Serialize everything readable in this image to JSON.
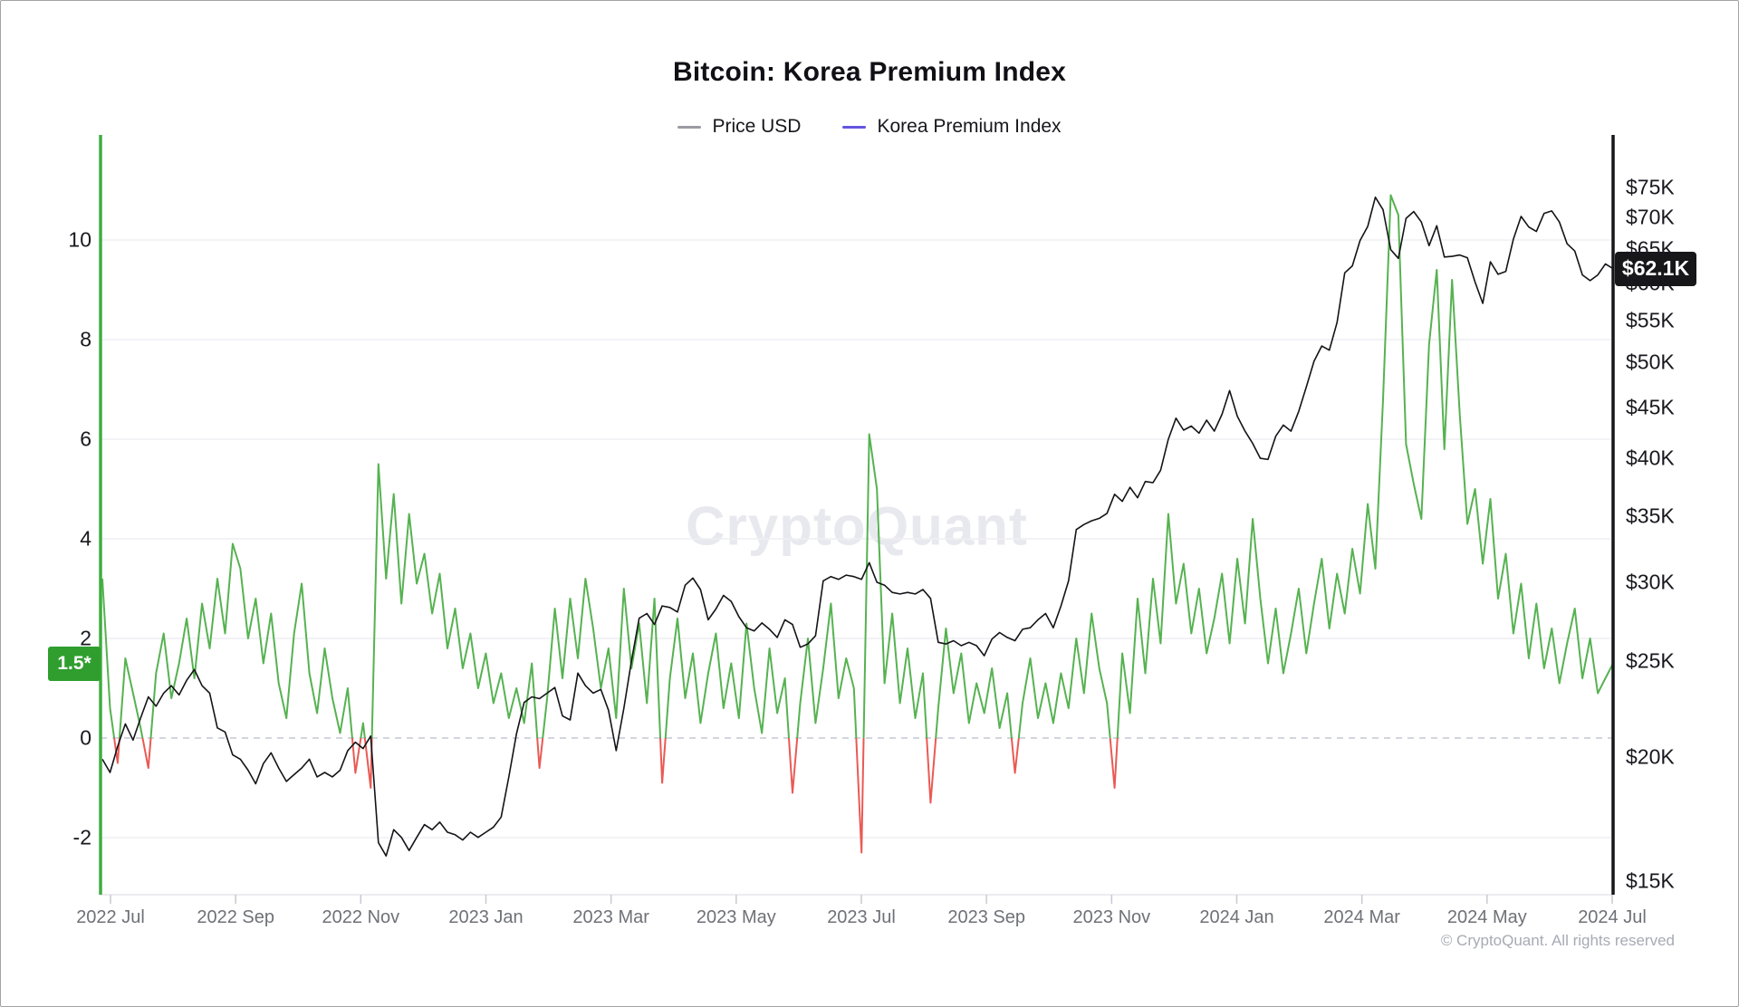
{
  "header": {
    "title": "Bitcoin: Korea Premium Index"
  },
  "legend": {
    "items": [
      {
        "label": "Price USD",
        "dash_color": "#9b9ba3"
      },
      {
        "label": "Korea Premium Index",
        "dash_color": "#6454e0"
      }
    ]
  },
  "badges": {
    "premium": {
      "label": "1.5*",
      "value": 1.5,
      "bg": "#2f9e2f"
    },
    "price": {
      "label": "$62.1K",
      "value": 62.1,
      "bg": "#17171a"
    }
  },
  "watermark": {
    "text": "CryptoQuant"
  },
  "footer": {
    "text": "© CryptoQuant. All rights reserved"
  },
  "colors": {
    "price_line": "#141418",
    "premium_positive": "#56b251",
    "premium_negative": "#ea5a54",
    "left_axis": "#3fae3f",
    "right_axis": "#17171a",
    "gridline": "#efeff3",
    "zero_line": "#c3c7d6",
    "x_baseline": "#e6e6eb",
    "x_tick": "#c9c9d1",
    "watermark": "#e8e8ef"
  },
  "chart_data": {
    "type": "line",
    "title": "Bitcoin: Korea Premium Index",
    "x_tick_labels": [
      "2022 Jul",
      "2022 Sep",
      "2022 Nov",
      "2023 Jan",
      "2023 Mar",
      "2023 May",
      "2023 Jul",
      "2023 Sep",
      "2023 Nov",
      "2024 Jan",
      "2024 Mar",
      "2024 May",
      "2024 Jul"
    ],
    "left_axis": {
      "title": "Korea Premium Index",
      "scale": "linear",
      "range_shown": [
        -3.1,
        11.7
      ],
      "ticks": [
        {
          "value": 10,
          "label": "10"
        },
        {
          "value": 8,
          "label": "8"
        },
        {
          "value": 6,
          "label": "6"
        },
        {
          "value": 4,
          "label": "4"
        },
        {
          "value": 2,
          "label": "2"
        },
        {
          "value": 0,
          "label": "0"
        },
        {
          "value": -2,
          "label": "-2"
        }
      ],
      "zero_line_value": 0,
      "current_value": 1.5
    },
    "right_axis": {
      "title": "Price USD (thousands)",
      "scale": "log",
      "range_shown": [
        14.6,
        80.5
      ],
      "ticks": [
        {
          "value": 75,
          "label": "$75K"
        },
        {
          "value": 70,
          "label": "$70K"
        },
        {
          "value": 65,
          "label": "$65K"
        },
        {
          "value": 60,
          "label": "$60K"
        },
        {
          "value": 55,
          "label": "$55K"
        },
        {
          "value": 50,
          "label": "$50K"
        },
        {
          "value": 45,
          "label": "$45K"
        },
        {
          "value": 40,
          "label": "$40K"
        },
        {
          "value": 35,
          "label": "$35K"
        },
        {
          "value": 30,
          "label": "$30K"
        },
        {
          "value": 25,
          "label": "$25K"
        },
        {
          "value": 20,
          "label": "$20K"
        },
        {
          "value": 15,
          "label": "$15K"
        }
      ],
      "current_value": 62.1
    },
    "sampling_note": "Values sampled uniformly (~3.7 days apart) across the visible x-range 2022 Jul – 2024 Jul, read from the plot.",
    "series": [
      {
        "name": "Price USD",
        "axis": "right",
        "unit": "K USD",
        "values": [
          19.9,
          19.3,
          20.5,
          21.6,
          20.8,
          21.9,
          23.0,
          22.5,
          23.2,
          23.6,
          23.1,
          23.9,
          24.5,
          23.6,
          23.2,
          21.4,
          21.2,
          20.1,
          19.9,
          19.4,
          18.8,
          19.7,
          20.2,
          19.5,
          18.9,
          19.2,
          19.5,
          19.9,
          19.1,
          19.3,
          19.1,
          19.4,
          20.3,
          20.7,
          20.4,
          21.0,
          16.4,
          15.9,
          16.9,
          16.6,
          16.1,
          16.6,
          17.1,
          16.9,
          17.2,
          16.8,
          16.7,
          16.5,
          16.8,
          16.6,
          16.8,
          17.0,
          17.4,
          19.1,
          21.1,
          22.7,
          23.0,
          22.9,
          23.2,
          23.5,
          22.0,
          21.8,
          24.3,
          23.6,
          23.2,
          23.4,
          22.3,
          20.3,
          22.4,
          25.0,
          27.6,
          27.9,
          27.2,
          28.4,
          28.3,
          28.0,
          29.8,
          30.3,
          29.5,
          27.5,
          28.2,
          29.1,
          28.7,
          27.7,
          27.0,
          26.8,
          27.3,
          26.9,
          26.4,
          27.5,
          27.2,
          25.8,
          26.0,
          26.5,
          30.1,
          30.4,
          30.2,
          30.5,
          30.4,
          30.2,
          31.4,
          30.0,
          29.8,
          29.3,
          29.2,
          29.3,
          29.2,
          29.5,
          28.9,
          26.1,
          26.0,
          26.2,
          25.9,
          26.1,
          25.9,
          25.3,
          26.3,
          26.7,
          26.4,
          26.2,
          26.9,
          27.0,
          27.5,
          27.9,
          27.0,
          28.4,
          30.1,
          33.9,
          34.3,
          34.6,
          34.8,
          35.2,
          36.8,
          36.2,
          37.4,
          36.5,
          37.9,
          37.8,
          38.9,
          41.8,
          43.9,
          42.7,
          43.1,
          42.4,
          43.7,
          42.6,
          44.3,
          46.8,
          44.1,
          42.6,
          41.4,
          40.0,
          39.9,
          42.1,
          43.2,
          42.6,
          44.6,
          47.2,
          50.1,
          51.9,
          51.4,
          54.8,
          61.5,
          62.5,
          66.3,
          68.5,
          73.3,
          71.2,
          64.9,
          63.6,
          69.8,
          70.9,
          69.2,
          65.5,
          68.6,
          63.8,
          63.9,
          64.1,
          63.7,
          60.2,
          57.3,
          63.1,
          61.3,
          61.7,
          66.5,
          70.1,
          68.4,
          67.7,
          70.6,
          71.0,
          69.2,
          65.8,
          64.7,
          61.2,
          60.4,
          61.2,
          62.8,
          62.1
        ]
      },
      {
        "name": "Korea Premium Index",
        "axis": "left",
        "unit": "%",
        "values": [
          3.2,
          0.6,
          -0.5,
          1.6,
          0.9,
          0.2,
          -0.6,
          1.3,
          2.1,
          0.8,
          1.5,
          2.4,
          1.2,
          2.7,
          1.8,
          3.2,
          2.1,
          3.9,
          3.4,
          2.0,
          2.8,
          1.5,
          2.5,
          1.1,
          0.4,
          2.1,
          3.1,
          1.3,
          0.5,
          1.8,
          0.8,
          0.1,
          1.0,
          -0.7,
          0.3,
          -1.0,
          5.5,
          3.2,
          4.9,
          2.7,
          4.5,
          3.1,
          3.7,
          2.5,
          3.3,
          1.8,
          2.6,
          1.4,
          2.1,
          1.0,
          1.7,
          0.7,
          1.3,
          0.4,
          1.0,
          0.3,
          1.5,
          -0.6,
          0.8,
          2.6,
          1.2,
          2.8,
          1.6,
          3.2,
          2.2,
          1.0,
          1.8,
          0.4,
          3.0,
          1.4,
          2.3,
          0.7,
          2.8,
          -0.9,
          1.2,
          2.4,
          0.8,
          1.7,
          0.3,
          1.3,
          2.1,
          0.6,
          1.5,
          0.4,
          2.3,
          1.0,
          0.1,
          1.8,
          0.5,
          1.2,
          -1.1,
          0.7,
          2.0,
          0.3,
          1.4,
          2.7,
          0.8,
          1.6,
          1.0,
          -2.3,
          6.1,
          5.0,
          1.1,
          2.5,
          0.7,
          1.8,
          0.4,
          1.3,
          -1.3,
          0.6,
          2.2,
          0.9,
          1.7,
          0.3,
          1.1,
          0.5,
          1.4,
          0.2,
          0.9,
          -0.7,
          0.7,
          1.6,
          0.4,
          1.1,
          0.3,
          1.3,
          0.6,
          2.0,
          0.9,
          2.5,
          1.4,
          0.7,
          -1.0,
          1.7,
          0.5,
          2.8,
          1.3,
          3.2,
          1.9,
          4.5,
          2.7,
          3.5,
          2.1,
          3.0,
          1.7,
          2.4,
          3.3,
          1.9,
          3.6,
          2.3,
          4.4,
          2.8,
          1.5,
          2.6,
          1.3,
          2.1,
          3.0,
          1.7,
          2.7,
          3.6,
          2.2,
          3.3,
          2.5,
          3.8,
          2.9,
          4.7,
          3.4,
          6.8,
          10.9,
          10.5,
          5.9,
          5.1,
          4.4,
          7.9,
          9.4,
          5.8,
          9.2,
          6.5,
          4.3,
          5.0,
          3.5,
          4.8,
          2.8,
          3.7,
          2.1,
          3.1,
          1.6,
          2.7,
          1.4,
          2.2,
          1.1,
          1.9,
          2.6,
          1.2,
          2.0,
          0.9,
          1.2,
          1.5
        ]
      }
    ]
  }
}
